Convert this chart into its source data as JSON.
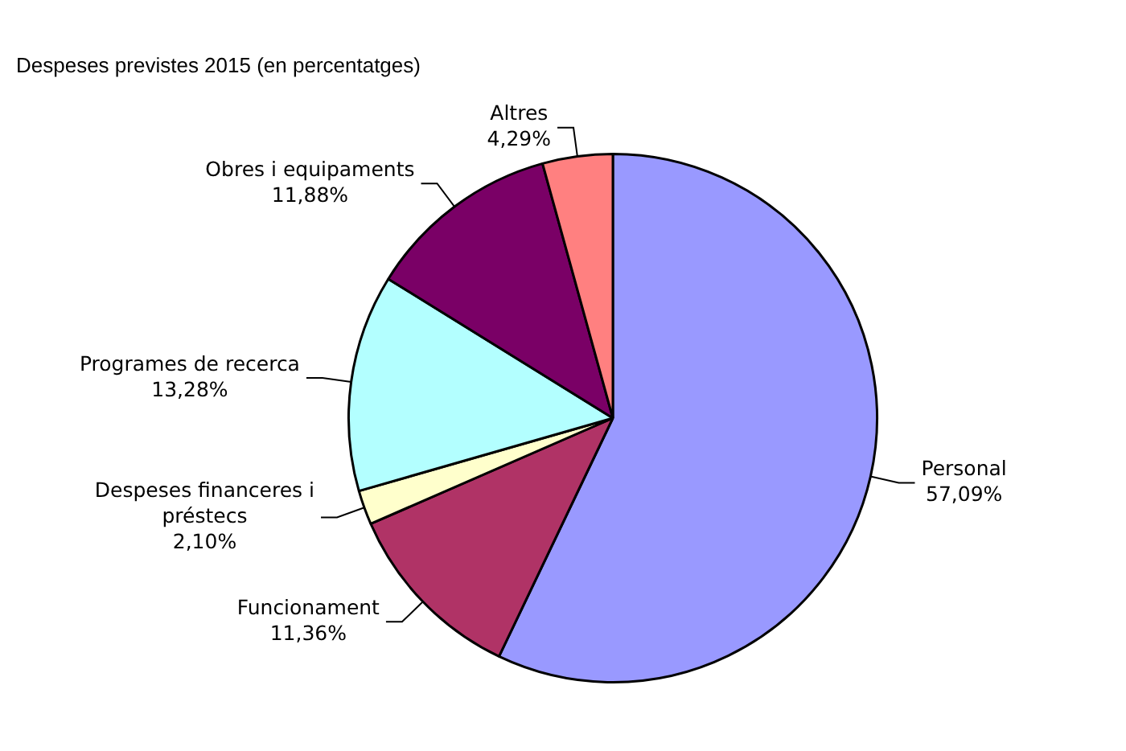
{
  "chart_data": {
    "type": "pie",
    "title": "Despeses previstes 2015 (en percentatges)",
    "categories": [
      "Personal",
      "Funcionament",
      "Despeses financeres i préstecs",
      "Programes de recerca",
      "Obres i equipaments",
      "Altres"
    ],
    "values": [
      57.09,
      11.36,
      2.1,
      13.28,
      11.88,
      4.29
    ],
    "value_labels": [
      "57,09%",
      "11,36%",
      "2,10%",
      "13,28%",
      "11,88%",
      "4,29%"
    ],
    "colors": [
      "#9999ff",
      "#b03366",
      "#ffffcc",
      "#b3ffff",
      "#7a0066",
      "#ff8080"
    ],
    "legend": false
  }
}
